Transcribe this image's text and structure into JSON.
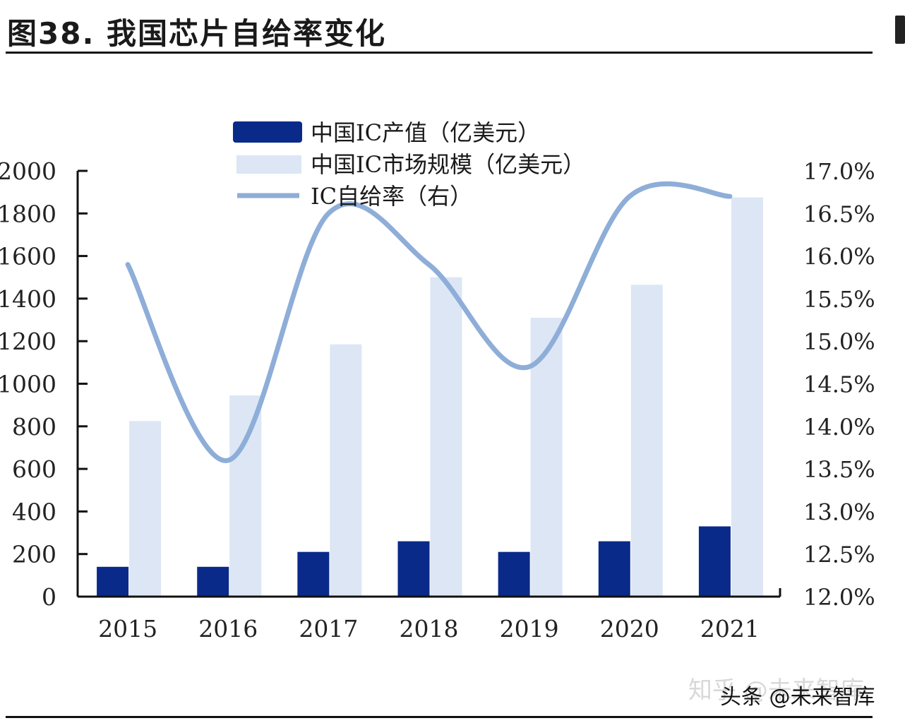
{
  "figure": {
    "title": "图38. 我国芯片自给率变化",
    "watermark_faint": "知乎 @未来智库",
    "watermark": "头条 @未来智库"
  },
  "chart_data": {
    "type": "bar",
    "categories": [
      "2015",
      "2016",
      "2017",
      "2018",
      "2019",
      "2020",
      "2021"
    ],
    "series": [
      {
        "name": "中国IC产值（亿美元）",
        "type": "bar",
        "axis": "left",
        "color": "#0a2a8a",
        "values": [
          140,
          140,
          210,
          260,
          210,
          260,
          330
        ]
      },
      {
        "name": "中国IC市场规模（亿美元）",
        "type": "bar",
        "axis": "left",
        "color": "#dce6f5",
        "values": [
          825,
          945,
          1185,
          1500,
          1310,
          1465,
          1875
        ]
      },
      {
        "name": "IC自给率（右）",
        "type": "line",
        "axis": "right",
        "color": "#8eaed8",
        "values": [
          15.9,
          13.6,
          16.5,
          15.9,
          14.7,
          16.7,
          16.7
        ]
      }
    ],
    "y_left": {
      "ylim": [
        0,
        2000
      ],
      "ticks": [
        "0",
        "200",
        "400",
        "600",
        "800",
        "1000",
        "1200",
        "1400",
        "1600",
        "1800",
        "2000"
      ]
    },
    "y_right": {
      "ylim": [
        12,
        17
      ],
      "ticks": [
        "12.0%",
        "12.5%",
        "13.0%",
        "13.5%",
        "14.0%",
        "14.5%",
        "15.0%",
        "15.5%",
        "16.0%",
        "16.5%",
        "17.0%"
      ]
    },
    "legend_position": "top-center",
    "grid": false
  }
}
